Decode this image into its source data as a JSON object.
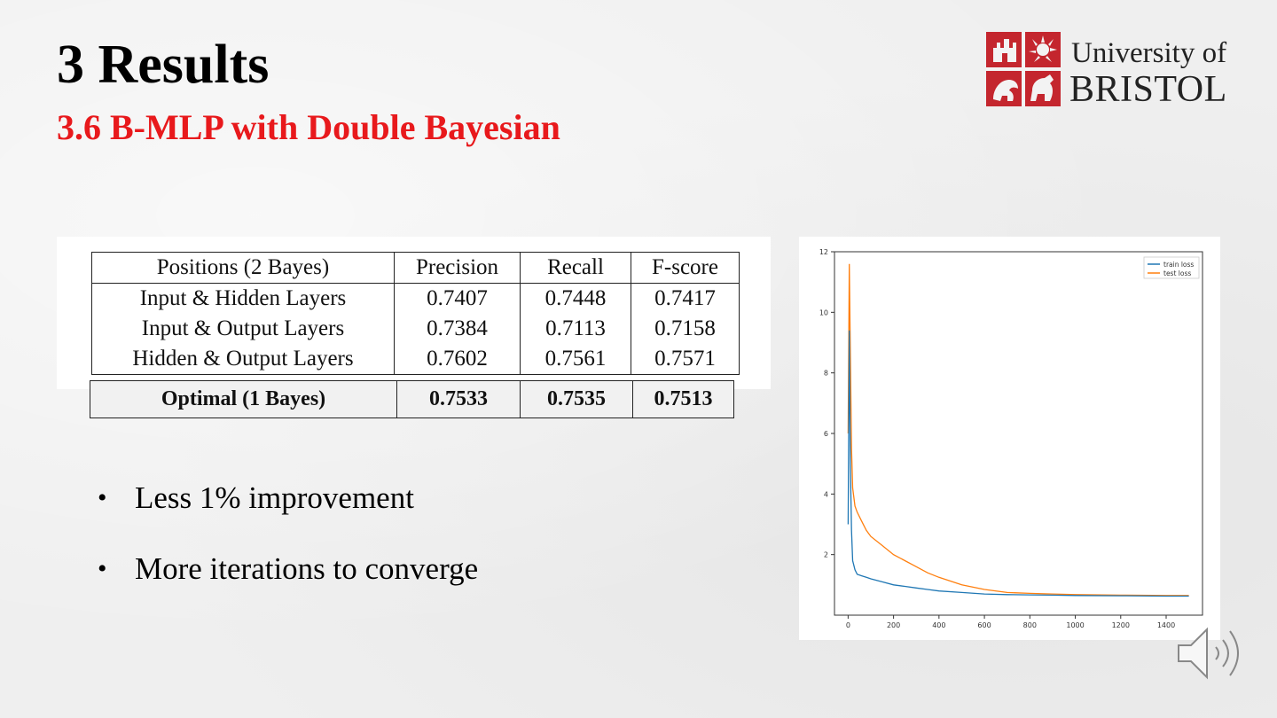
{
  "slide": {
    "title": "3 Results",
    "subtitle": "3.6 B-MLP with Double Bayesian",
    "title_color": "#000000",
    "subtitle_color": "#e8191c"
  },
  "logo": {
    "line1": "University of",
    "line2": "BRISTOL",
    "crest_color": "#c4262e"
  },
  "table": {
    "headers": [
      "Positions (2 Bayes)",
      "Precision",
      "Recall",
      "F-score"
    ],
    "rows": [
      [
        "Input & Hidden Layers",
        "0.7407",
        "0.7448",
        "0.7417"
      ],
      [
        "Input & Output Layers",
        "0.7384",
        "0.7113",
        "0.7158"
      ],
      [
        "Hidden & Output Layers",
        "0.7602",
        "0.7561",
        "0.7571"
      ]
    ],
    "optimal": [
      "Optimal (1 Bayes)",
      "0.7533",
      "0.7535",
      "0.7513"
    ]
  },
  "bullets": [
    "Less 1% improvement",
    "More iterations to converge"
  ],
  "chart_data": {
    "type": "line",
    "xlim": [
      -60,
      1560
    ],
    "ylim": [
      0,
      12
    ],
    "x_ticks": [
      0,
      200,
      400,
      600,
      800,
      1000,
      1200,
      1400
    ],
    "y_ticks": [
      2,
      4,
      6,
      8,
      10,
      12
    ],
    "legend_position": "top-right",
    "grid": false,
    "series": [
      {
        "name": "train loss",
        "color": "#1f77b4",
        "x": [
          0,
          5,
          10,
          15,
          20,
          30,
          40,
          60,
          80,
          100,
          150,
          200,
          250,
          300,
          350,
          400,
          500,
          600,
          700,
          800,
          900,
          1000,
          1200,
          1400,
          1500
        ],
        "y": [
          3.0,
          9.4,
          5.0,
          2.8,
          1.8,
          1.5,
          1.35,
          1.3,
          1.25,
          1.2,
          1.1,
          1.0,
          0.95,
          0.9,
          0.85,
          0.8,
          0.75,
          0.7,
          0.68,
          0.67,
          0.66,
          0.65,
          0.64,
          0.63,
          0.63
        ]
      },
      {
        "name": "test loss",
        "color": "#ff7f0e",
        "x": [
          0,
          5,
          10,
          15,
          20,
          30,
          40,
          60,
          80,
          100,
          150,
          200,
          250,
          300,
          350,
          400,
          500,
          600,
          700,
          800,
          900,
          1000,
          1200,
          1400,
          1500
        ],
        "y": [
          6.0,
          11.6,
          8.6,
          5.5,
          4.2,
          3.6,
          3.4,
          3.1,
          2.8,
          2.6,
          2.3,
          2.0,
          1.8,
          1.6,
          1.4,
          1.25,
          1.0,
          0.85,
          0.75,
          0.72,
          0.7,
          0.68,
          0.66,
          0.65,
          0.65
        ]
      }
    ]
  }
}
